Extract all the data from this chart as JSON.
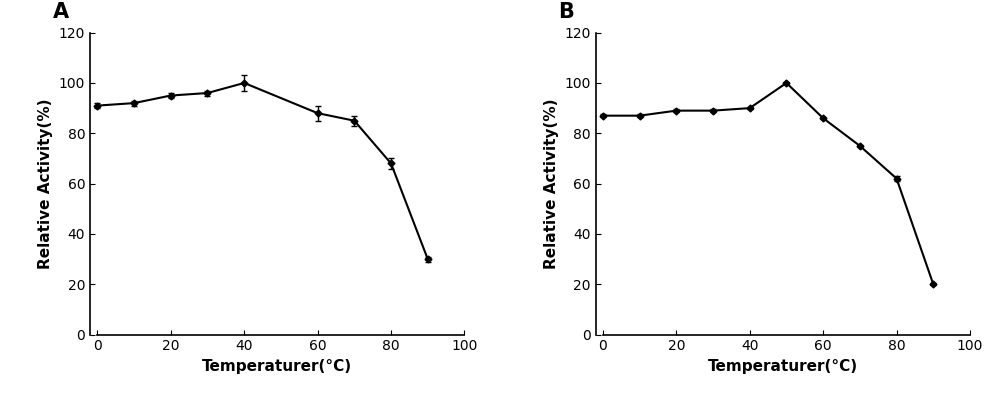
{
  "panel_A": {
    "label": "A",
    "x": [
      0,
      10,
      20,
      30,
      40,
      60,
      70,
      80,
      90
    ],
    "y": [
      91,
      92,
      95,
      96,
      100,
      88,
      85,
      68,
      30
    ],
    "yerr": [
      1,
      1,
      1,
      1,
      3,
      3,
      2,
      2,
      1
    ],
    "xlabel": "Temperaturer(°C)",
    "ylabel": "Relative Activity(%)",
    "xlim": [
      -2,
      100
    ],
    "ylim": [
      0,
      120
    ],
    "xticks": [
      0,
      20,
      40,
      60,
      80,
      100
    ],
    "yticks": [
      0,
      20,
      40,
      60,
      80,
      100,
      120
    ]
  },
  "panel_B": {
    "label": "B",
    "x": [
      0,
      10,
      20,
      30,
      40,
      50,
      60,
      70,
      80,
      90
    ],
    "y": [
      87,
      87,
      89,
      89,
      90,
      100,
      86,
      75,
      62,
      20
    ],
    "yerr": [
      0.5,
      0.5,
      0.5,
      0.5,
      0.5,
      0.5,
      0.5,
      0.5,
      1,
      0.5
    ],
    "xlabel": "Temperaturer(°C)",
    "ylabel": "Relative Activity(%)",
    "xlim": [
      -2,
      100
    ],
    "ylim": [
      0,
      120
    ],
    "xticks": [
      0,
      20,
      40,
      60,
      80,
      100
    ],
    "yticks": [
      0,
      20,
      40,
      60,
      80,
      100,
      120
    ]
  },
  "line_color": "#000000",
  "marker": "D",
  "marker_size": 3.5,
  "marker_facecolor": "#000000",
  "line_width": 1.5,
  "capsize": 2.5,
  "elinewidth": 1.0,
  "label_fontsize": 11,
  "tick_fontsize": 10,
  "panel_label_fontsize": 15
}
